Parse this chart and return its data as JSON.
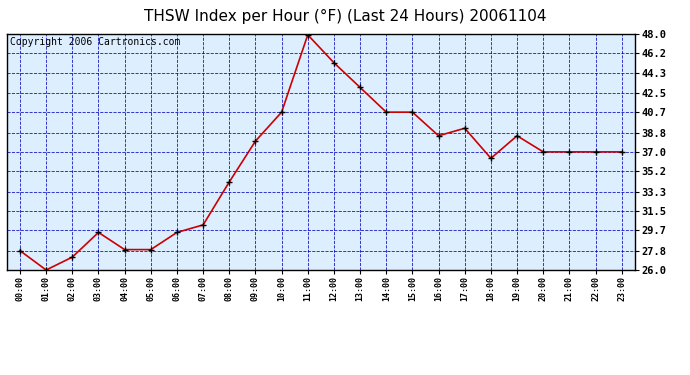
{
  "title": "THSW Index per Hour (°F) (Last 24 Hours) 20061104",
  "copyright": "Copyright 2006 Cartronics.com",
  "hours": [
    "00:00",
    "01:00",
    "02:00",
    "03:00",
    "04:00",
    "05:00",
    "06:00",
    "07:00",
    "08:00",
    "09:00",
    "10:00",
    "11:00",
    "12:00",
    "13:00",
    "14:00",
    "15:00",
    "16:00",
    "17:00",
    "18:00",
    "19:00",
    "20:00",
    "21:00",
    "22:00",
    "23:00"
  ],
  "values": [
    27.8,
    26.0,
    27.2,
    29.5,
    27.9,
    27.9,
    29.5,
    30.2,
    34.2,
    38.0,
    40.7,
    47.9,
    45.3,
    43.0,
    40.7,
    40.7,
    38.5,
    39.2,
    36.4,
    38.5,
    37.0,
    37.0,
    37.0,
    37.0
  ],
  "yticks": [
    26.0,
    27.8,
    29.7,
    31.5,
    33.3,
    35.2,
    37.0,
    38.8,
    40.7,
    42.5,
    44.3,
    46.2,
    48.0
  ],
  "ymin": 26.0,
  "ymax": 48.0,
  "line_color": "#cc0000",
  "marker_color": "#000000",
  "plot_bg": "#ddeeff",
  "grid_color": "#0000bb",
  "title_color": "#000000",
  "title_fontsize": 11,
  "copyright_fontsize": 7
}
